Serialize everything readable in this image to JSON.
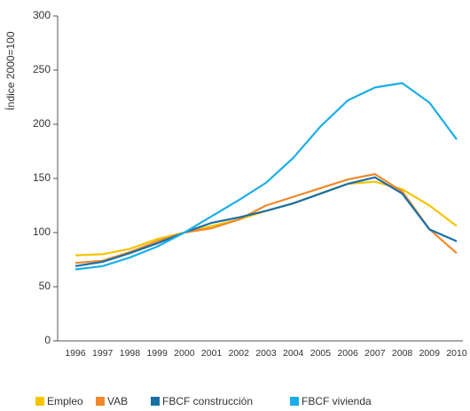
{
  "chart_data": {
    "type": "line",
    "y_label": "Índice 2000=100",
    "categories": [
      "1996",
      "1997",
      "1998",
      "1999",
      "2000",
      "2001",
      "2002",
      "2003",
      "2004",
      "2005",
      "2006",
      "2007",
      "2008",
      "2009",
      "2010"
    ],
    "series": [
      {
        "name": "Empleo",
        "color": "#f5c400",
        "values": [
          79,
          80,
          85,
          94,
          100,
          106,
          112,
          120,
          127,
          136,
          145,
          147,
          140,
          125,
          106
        ]
      },
      {
        "name": "VAB",
        "color": "#f0892a",
        "values": [
          72,
          74,
          82,
          92,
          100,
          104,
          112,
          125,
          133,
          141,
          149,
          154,
          138,
          103,
          81
        ]
      },
      {
        "name": "FBCF construcción",
        "color": "#1a6fa5",
        "values": [
          69,
          73,
          81,
          90,
          100,
          109,
          114,
          120,
          127,
          136,
          145,
          151,
          136,
          103,
          92
        ]
      },
      {
        "name": "FBCF vivienda",
        "color": "#1aaee8",
        "values": [
          66,
          69,
          77,
          87,
          100,
          115,
          130,
          146,
          169,
          198,
          222,
          234,
          238,
          220,
          186
        ]
      }
    ],
    "ylim": [
      0,
      300
    ],
    "yticks": [
      0,
      50,
      100,
      150,
      200,
      250,
      300
    ],
    "grid": false
  }
}
